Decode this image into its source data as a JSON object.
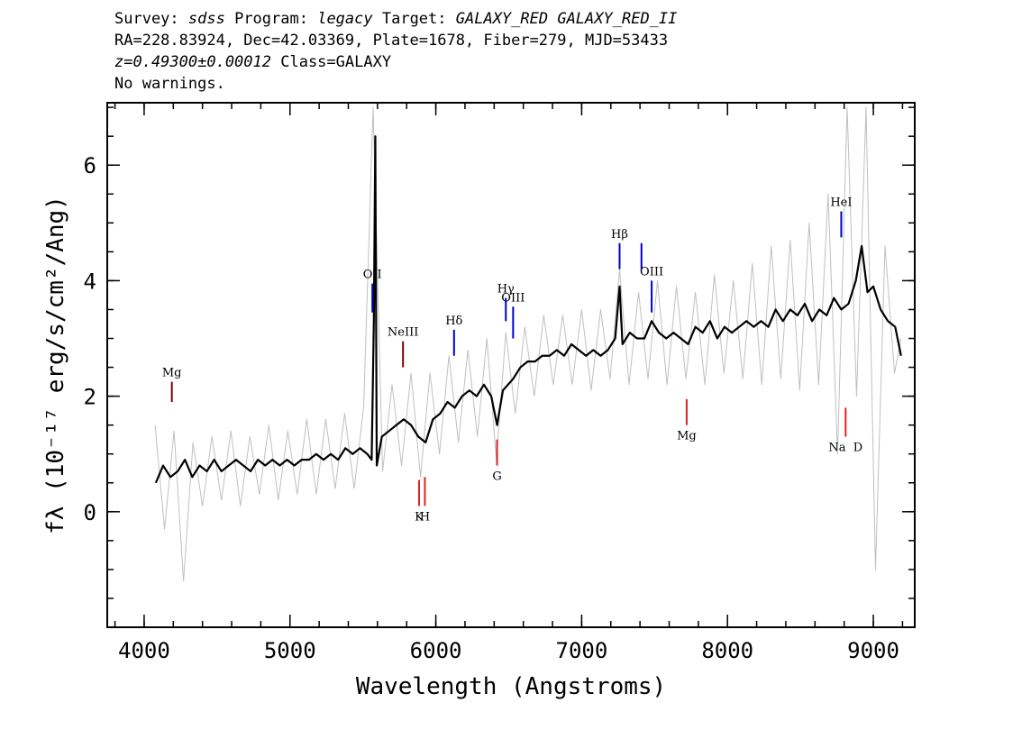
{
  "chart_data": {
    "type": "line",
    "header": [
      [
        {
          "text": "Survey: "
        },
        {
          "text": "sdss",
          "italic": true
        },
        {
          "text": " Program: "
        },
        {
          "text": "legacy",
          "italic": true
        },
        {
          "text": " Target: "
        },
        {
          "text": "GALAXY_RED GALAXY_RED_II",
          "italic": true
        }
      ],
      [
        {
          "text": "RA=228.83924, Dec=42.03369, Plate=1678, Fiber=279, MJD=53433"
        }
      ],
      [
        {
          "text": "z=0.49300±0.00012",
          "italic": true
        },
        {
          "text": " Class=GALAXY"
        }
      ],
      [
        {
          "text": "No warnings."
        }
      ]
    ],
    "xlabel": "Wavelength (Angstroms)",
    "ylabel": "fλ (10⁻¹⁷ erg/s/cm²/Ang)",
    "xlim": [
      3747,
      9284
    ],
    "ylim": [
      -2,
      7.08
    ],
    "xticks": [
      4000,
      5000,
      6000,
      7000,
      8000,
      9000
    ],
    "yticks": [
      0,
      2,
      4,
      6
    ],
    "xminor": [
      3800,
      4000,
      4200,
      4400,
      4600,
      4800,
      5000,
      5200,
      5400,
      5600,
      5800,
      6000,
      6200,
      6400,
      6600,
      6800,
      7000,
      7200,
      7400,
      7600,
      7800,
      8000,
      8200,
      8400,
      8600,
      8800,
      9000,
      9200
    ],
    "yminor": [
      -1.5,
      -1,
      -0.5,
      0,
      0.5,
      1,
      1.5,
      2,
      2.5,
      3,
      3.5,
      4,
      4.5,
      5,
      5.5,
      6,
      6.5,
      7
    ],
    "series": [
      {
        "color": "#c0c0c0",
        "width": 1,
        "x": [
          4075,
          4140,
          4205,
          4270,
          4335,
          4400,
          4465,
          4530,
          4595,
          4660,
          4725,
          4790,
          4855,
          4920,
          4985,
          5050,
          5115,
          5180,
          5245,
          5310,
          5375,
          5440,
          5505,
          5570,
          5635,
          5700,
          5765,
          5830,
          5895,
          5960,
          6025,
          6090,
          6155,
          6220,
          6285,
          6350,
          6415,
          6480,
          6545,
          6610,
          6675,
          6740,
          6805,
          6870,
          6935,
          7000,
          7065,
          7130,
          7195,
          7260,
          7325,
          7390,
          7455,
          7520,
          7585,
          7650,
          7715,
          7780,
          7845,
          7910,
          7975,
          8040,
          8105,
          8170,
          8235,
          8300,
          8365,
          8430,
          8495,
          8560,
          8625,
          8690,
          8755,
          8820,
          8885,
          8950,
          9015,
          9080,
          9145,
          9190
        ],
        "values": [
          1.5,
          -0.3,
          1.4,
          -1.2,
          1.2,
          0.1,
          1.3,
          0.2,
          1.4,
          0.1,
          1.3,
          0.3,
          1.5,
          0.2,
          1.4,
          0.3,
          1.6,
          0.3,
          1.6,
          0.4,
          1.7,
          0.4,
          1.8,
          7.0,
          0.7,
          2.2,
          0.8,
          2.4,
          0.6,
          2.4,
          1.0,
          2.7,
          1.2,
          2.8,
          1.3,
          3.0,
          0.9,
          3.1,
          1.7,
          3.2,
          2.0,
          3.4,
          2.2,
          3.4,
          2.2,
          3.5,
          2.1,
          3.5,
          2.3,
          4.2,
          2.2,
          3.8,
          2.3,
          4.0,
          2.2,
          3.9,
          2.3,
          3.8,
          2.2,
          4.1,
          2.4,
          4.0,
          2.3,
          4.3,
          2.2,
          4.6,
          2.3,
          4.7,
          2.1,
          5.0,
          2.2,
          5.5,
          1.0,
          7.0,
          2.0,
          7.0,
          -1.0,
          4.6,
          2.4,
          3.0
        ]
      },
      {
        "color": "#000000",
        "width": 2.2,
        "x": [
          4080,
          4130,
          4180,
          4230,
          4280,
          4330,
          4380,
          4430,
          4480,
          4530,
          4580,
          4630,
          4680,
          4730,
          4780,
          4830,
          4880,
          4930,
          4980,
          5030,
          5080,
          5130,
          5180,
          5230,
          5280,
          5330,
          5380,
          5430,
          5480,
          5530,
          5560,
          5575,
          5585,
          5595,
          5630,
          5680,
          5730,
          5780,
          5830,
          5880,
          5930,
          5980,
          6030,
          6080,
          6130,
          6180,
          6230,
          6280,
          6330,
          6380,
          6420,
          6460,
          6530,
          6580,
          6630,
          6680,
          6730,
          6780,
          6830,
          6880,
          6930,
          6980,
          7030,
          7080,
          7130,
          7180,
          7230,
          7260,
          7280,
          7330,
          7380,
          7430,
          7480,
          7530,
          7580,
          7630,
          7680,
          7730,
          7780,
          7830,
          7880,
          7930,
          7980,
          8030,
          8080,
          8130,
          8180,
          8230,
          8280,
          8330,
          8380,
          8430,
          8480,
          8530,
          8580,
          8630,
          8680,
          8730,
          8780,
          8830,
          8880,
          8920,
          8960,
          9000,
          9050,
          9100,
          9150,
          9190
        ],
        "values": [
          0.5,
          0.8,
          0.6,
          0.7,
          0.9,
          0.6,
          0.8,
          0.7,
          0.9,
          0.7,
          0.8,
          0.9,
          0.8,
          0.7,
          0.9,
          0.8,
          0.9,
          0.8,
          0.9,
          0.8,
          0.9,
          0.9,
          1.0,
          0.9,
          1.0,
          0.9,
          1.1,
          1.0,
          1.1,
          1.0,
          0.9,
          3.3,
          6.5,
          0.8,
          1.3,
          1.4,
          1.5,
          1.6,
          1.5,
          1.3,
          1.2,
          1.6,
          1.7,
          1.9,
          1.8,
          2.0,
          2.1,
          2.0,
          2.2,
          2.0,
          1.5,
          2.1,
          2.3,
          2.5,
          2.6,
          2.6,
          2.7,
          2.7,
          2.8,
          2.7,
          2.9,
          2.8,
          2.7,
          2.8,
          2.7,
          2.8,
          3.0,
          3.9,
          2.9,
          3.1,
          3.0,
          3.0,
          3.3,
          3.1,
          3.0,
          3.1,
          3.0,
          2.9,
          3.2,
          3.1,
          3.3,
          3.0,
          3.2,
          3.1,
          3.2,
          3.3,
          3.2,
          3.3,
          3.2,
          3.5,
          3.3,
          3.5,
          3.4,
          3.6,
          3.3,
          3.5,
          3.4,
          3.7,
          3.5,
          3.6,
          4.0,
          4.6,
          3.8,
          3.9,
          3.5,
          3.3,
          3.2,
          2.7
        ]
      }
    ],
    "annotations": [
      {
        "text": "Mg",
        "x": 4190,
        "y": [
          1.9,
          2.25
        ],
        "color": "#800000",
        "side": "above"
      },
      {
        "text": "OII",
        "x": 5565,
        "y": [
          3.45,
          3.95
        ],
        "color": "#0000cc",
        "side": "above"
      },
      {
        "text": "NeIII",
        "x": 5775,
        "y": [
          2.5,
          2.95
        ],
        "color": "#800000",
        "side": "above"
      },
      {
        "text": "Hδ",
        "x": 6125,
        "y": [
          2.7,
          3.15
        ],
        "color": "#0000cc",
        "side": "above"
      },
      {
        "text": "Hγ",
        "x": 6480,
        "y": [
          3.3,
          3.7
        ],
        "color": "#0000cc",
        "side": "above"
      },
      {
        "text": "OIII",
        "x": 6530,
        "y": [
          3.0,
          3.55
        ],
        "color": "#0000cc",
        "side": "above"
      },
      {
        "text": "Hβ",
        "x": 7260,
        "y": [
          4.2,
          4.65
        ],
        "color": "#0000cc",
        "side": "above"
      },
      {
        "x": 7410,
        "y": [
          4.2,
          4.65
        ],
        "color": "#0000cc",
        "side": "above"
      },
      {
        "text": "OIII",
        "x": 7480,
        "y": [
          3.45,
          4.0
        ],
        "color": "#0000cc",
        "side": "above"
      },
      {
        "text": "HeI",
        "x": 8780,
        "y": [
          4.75,
          5.2
        ],
        "color": "#0000cc",
        "side": "above"
      },
      {
        "text": "K",
        "x": 5885,
        "y": [
          0.1,
          0.55
        ],
        "color": "#dd2222",
        "side": "below"
      },
      {
        "text": "H",
        "x": 5925,
        "y": [
          0.1,
          0.6
        ],
        "color": "#dd2222",
        "side": "below"
      },
      {
        "text": "G",
        "x": 6420,
        "y": [
          0.8,
          1.25
        ],
        "color": "#dd2222",
        "side": "below"
      },
      {
        "text": "Mg",
        "x": 7720,
        "y": [
          1.5,
          1.95
        ],
        "color": "#dd2222",
        "side": "below"
      },
      {
        "text": "Na  D",
        "x": 8810,
        "y": [
          1.3,
          1.8
        ],
        "color": "#dd2222",
        "side": "below"
      }
    ]
  }
}
